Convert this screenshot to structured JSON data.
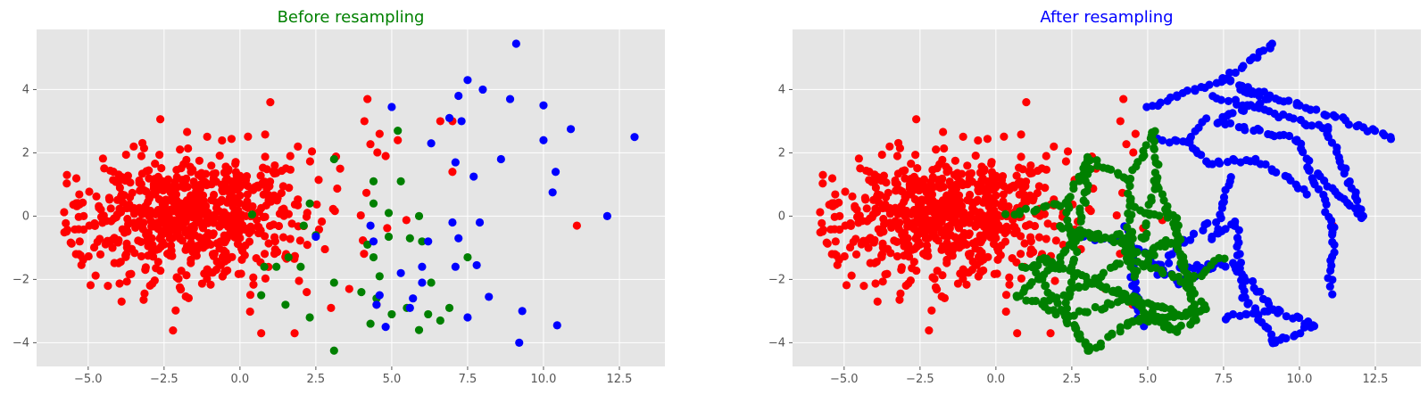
{
  "chart_data": [
    {
      "type": "scatter",
      "title": "Before resampling",
      "title_color": "#008000",
      "xlim": [
        -6.7,
        14.0
      ],
      "ylim": [
        -4.75,
        5.9
      ],
      "xticks": [
        -5.0,
        -2.5,
        0.0,
        2.5,
        5.0,
        7.5,
        10.0,
        12.5
      ],
      "xtick_labels": [
        "−5.0",
        "−2.5",
        "0.0",
        "2.5",
        "5.0",
        "7.5",
        "10.0",
        "12.5"
      ],
      "yticks": [
        -4,
        -2,
        0,
        2,
        4
      ],
      "ytick_labels": [
        "−4",
        "−2",
        "0",
        "2",
        "4"
      ],
      "grid": true,
      "background": "#e5e5e5",
      "series": [
        {
          "color": "#ff0000",
          "cloud": {
            "cx": -1.5,
            "cy": 0.0,
            "sx": 2.0,
            "sy": 1.05,
            "n": 700,
            "xmin": -5.8,
            "xmax": 5.5
          },
          "points": [
            [
              -5.7,
              1.3
            ],
            [
              -3.9,
              -2.7
            ],
            [
              -3.5,
              2.2
            ],
            [
              1.0,
              3.6
            ],
            [
              3.3,
              1.5
            ],
            [
              3.6,
              -2.3
            ],
            [
              4.1,
              3.0
            ],
            [
              4.2,
              3.7
            ],
            [
              4.6,
              2.6
            ],
            [
              4.5,
              -2.8
            ],
            [
              4.8,
              1.9
            ],
            [
              5.2,
              2.4
            ],
            [
              6.6,
              3.0
            ],
            [
              7.0,
              3.0
            ],
            [
              7.0,
              1.4
            ],
            [
              11.1,
              -0.3
            ],
            [
              0.7,
              -3.7
            ],
            [
              1.8,
              -3.7
            ],
            [
              3.0,
              -2.9
            ],
            [
              2.2,
              -2.4
            ]
          ]
        },
        {
          "color": "#008000",
          "points": [
            [
              3.1,
              -4.25
            ],
            [
              5.2,
              2.7
            ],
            [
              5.3,
              1.1
            ],
            [
              5.9,
              0.0
            ],
            [
              6.0,
              -0.8
            ],
            [
              6.3,
              -2.1
            ],
            [
              7.5,
              -1.3
            ],
            [
              6.9,
              -2.9
            ],
            [
              6.6,
              -3.3
            ],
            [
              6.2,
              -3.1
            ],
            [
              5.9,
              -3.6
            ],
            [
              5.5,
              -2.9
            ],
            [
              5.0,
              -3.1
            ],
            [
              4.3,
              -3.4
            ],
            [
              4.5,
              -2.6
            ],
            [
              4.0,
              -2.4
            ],
            [
              4.4,
              -1.3
            ],
            [
              4.2,
              -0.9
            ],
            [
              4.4,
              0.4
            ],
            [
              4.4,
              1.1
            ],
            [
              4.9,
              0.1
            ],
            [
              4.9,
              -0.65
            ],
            [
              3.1,
              1.8
            ],
            [
              2.3,
              0.4
            ],
            [
              2.5,
              -0.6
            ],
            [
              2.0,
              -1.6
            ],
            [
              1.6,
              -1.3
            ],
            [
              1.2,
              -1.6
            ],
            [
              0.8,
              -1.6
            ],
            [
              0.7,
              -2.5
            ],
            [
              1.5,
              -2.8
            ],
            [
              2.3,
              -3.2
            ],
            [
              3.1,
              -2.1
            ],
            [
              0.4,
              0.05
            ],
            [
              5.6,
              -0.7
            ],
            [
              4.6,
              -1.9
            ],
            [
              2.1,
              -0.3
            ]
          ]
        },
        {
          "color": "#0000ff",
          "points": [
            [
              9.1,
              5.45
            ],
            [
              7.5,
              4.3
            ],
            [
              8.0,
              4.0
            ],
            [
              8.9,
              3.7
            ],
            [
              7.2,
              3.8
            ],
            [
              7.3,
              3.0
            ],
            [
              10.0,
              3.5
            ],
            [
              10.9,
              2.75
            ],
            [
              13.0,
              2.5
            ],
            [
              10.0,
              2.4
            ],
            [
              6.9,
              3.1
            ],
            [
              6.3,
              2.3
            ],
            [
              7.1,
              1.7
            ],
            [
              7.7,
              1.25
            ],
            [
              8.6,
              1.8
            ],
            [
              10.4,
              1.4
            ],
            [
              10.3,
              0.75
            ],
            [
              12.1,
              0.0
            ],
            [
              6.0,
              -1.6
            ],
            [
              6.2,
              -0.8
            ],
            [
              7.0,
              -0.2
            ],
            [
              7.2,
              -0.7
            ],
            [
              7.9,
              -0.2
            ],
            [
              7.1,
              -1.6
            ],
            [
              7.8,
              -1.55
            ],
            [
              8.2,
              -2.55
            ],
            [
              9.3,
              -3.0
            ],
            [
              10.45,
              -3.45
            ],
            [
              9.2,
              -4.0
            ],
            [
              7.5,
              -3.2
            ],
            [
              6.0,
              -2.1
            ],
            [
              5.7,
              -2.6
            ],
            [
              5.6,
              -2.9
            ],
            [
              4.3,
              -0.3
            ],
            [
              4.4,
              -0.8
            ],
            [
              4.6,
              -2.5
            ],
            [
              4.5,
              -2.8
            ],
            [
              4.8,
              -3.5
            ],
            [
              5.0,
              3.45
            ],
            [
              2.5,
              -0.65
            ],
            [
              5.3,
              -1.8
            ]
          ]
        }
      ]
    },
    {
      "type": "scatter",
      "title": "After resampling",
      "title_color": "#0000ff",
      "xlim": [
        -6.7,
        14.0
      ],
      "ylim": [
        -4.75,
        5.9
      ],
      "xticks": [
        -5.0,
        -2.5,
        0.0,
        2.5,
        5.0,
        7.5,
        10.0,
        12.5
      ],
      "xtick_labels": [
        "−5.0",
        "−2.5",
        "0.0",
        "2.5",
        "5.0",
        "7.5",
        "10.0",
        "12.5"
      ],
      "yticks": [
        -4,
        -2,
        0,
        2,
        4
      ],
      "ytick_labels": [
        "−4",
        "−2",
        "0",
        "2",
        "4"
      ],
      "grid": true,
      "background": "#e5e5e5",
      "series": [
        {
          "color": "#ff0000",
          "cloud": {
            "cx": -1.5,
            "cy": 0.0,
            "sx": 2.0,
            "sy": 1.05,
            "n": 700,
            "xmin": -5.8,
            "xmax": 5.5
          },
          "points": [
            [
              -5.7,
              1.3
            ],
            [
              -3.9,
              -2.7
            ],
            [
              -3.5,
              2.2
            ],
            [
              1.0,
              3.6
            ],
            [
              3.3,
              1.5
            ],
            [
              3.6,
              -2.3
            ],
            [
              4.1,
              3.0
            ],
            [
              4.2,
              3.7
            ],
            [
              4.6,
              2.6
            ],
            [
              4.5,
              -2.8
            ],
            [
              11.1,
              -0.3
            ],
            [
              0.7,
              -3.7
            ],
            [
              1.8,
              -3.7
            ]
          ]
        },
        {
          "color": "#0000ff",
          "paths": [
            [
              [
                5.0,
                3.45
              ],
              [
                7.5,
                4.3
              ],
              [
                9.1,
                5.45
              ]
            ],
            [
              [
                7.5,
                4.3
              ],
              [
                10.0,
                3.5
              ],
              [
                13.0,
                2.5
              ]
            ],
            [
              [
                7.2,
                3.8
              ],
              [
                10.9,
                2.75
              ],
              [
                12.1,
                0.0
              ]
            ],
            [
              [
                7.3,
                3.0
              ],
              [
                10.0,
                2.4
              ],
              [
                10.4,
                1.4
              ],
              [
                12.1,
                0.0
              ]
            ],
            [
              [
                6.3,
                2.3
              ],
              [
                7.1,
                1.7
              ],
              [
                8.6,
                1.8
              ],
              [
                10.3,
                0.75
              ]
            ],
            [
              [
                7.7,
                1.25
              ],
              [
                7.2,
                -0.7
              ],
              [
                7.9,
                -0.2
              ],
              [
                8.2,
                -2.55
              ]
            ],
            [
              [
                8.2,
                -2.55
              ],
              [
                9.2,
                -4.0
              ],
              [
                10.45,
                -3.45
              ]
            ],
            [
              [
                7.5,
                -3.2
              ],
              [
                9.3,
                -3.0
              ],
              [
                10.45,
                -3.45
              ]
            ],
            [
              [
                6.0,
                -1.6
              ],
              [
                7.8,
                -1.55
              ],
              [
                9.3,
                -3.0
              ]
            ],
            [
              [
                5.3,
                -1.8
              ],
              [
                6.2,
                -0.8
              ],
              [
                7.0,
                -0.2
              ]
            ],
            [
              [
                4.3,
                -0.3
              ],
              [
                4.6,
                -2.5
              ],
              [
                4.8,
                -3.5
              ]
            ],
            [
              [
                6.9,
                3.1
              ],
              [
                6.3,
                2.3
              ],
              [
                5.2,
                2.4
              ]
            ],
            [
              [
                10.4,
                1.4
              ],
              [
                11.1,
                -0.3
              ],
              [
                11.0,
                -2.4
              ]
            ],
            [
              [
                8.0,
                4.0
              ],
              [
                8.9,
                3.7
              ],
              [
                7.3,
                3.0
              ]
            ],
            [
              [
                2.5,
                -0.65
              ],
              [
                4.4,
                -0.8
              ],
              [
                6.0,
                -2.1
              ],
              [
                7.1,
                -1.6
              ]
            ]
          ],
          "points": [
            [
              9.1,
              5.45
            ],
            [
              13.0,
              2.5
            ],
            [
              12.1,
              0.0
            ],
            [
              9.2,
              -4.0
            ],
            [
              10.45,
              -3.45
            ],
            [
              7.5,
              4.3
            ],
            [
              10.0,
              3.5
            ],
            [
              10.9,
              2.75
            ]
          ]
        },
        {
          "color": "#008000",
          "paths": [
            [
              [
                3.1,
                -4.25
              ],
              [
                2.3,
                -3.2
              ],
              [
                1.5,
                -2.8
              ],
              [
                0.7,
                -2.5
              ]
            ],
            [
              [
                0.8,
                -1.6
              ],
              [
                1.2,
                -1.6
              ],
              [
                1.6,
                -1.3
              ],
              [
                2.0,
                -1.6
              ],
              [
                2.5,
                -0.6
              ],
              [
                2.3,
                0.4
              ]
            ],
            [
              [
                0.4,
                0.05
              ],
              [
                2.3,
                0.4
              ],
              [
                3.1,
                1.8
              ],
              [
                4.4,
                1.1
              ],
              [
                5.2,
                2.7
              ]
            ],
            [
              [
                4.4,
                0.4
              ],
              [
                4.9,
                0.1
              ],
              [
                5.9,
                0.0
              ],
              [
                6.0,
                -0.8
              ],
              [
                6.3,
                -2.1
              ],
              [
                7.5,
                -1.3
              ]
            ],
            [
              [
                3.1,
                -2.1
              ],
              [
                4.0,
                -2.4
              ],
              [
                4.5,
                -2.6
              ],
              [
                5.5,
                -2.9
              ],
              [
                6.2,
                -3.1
              ],
              [
                6.9,
                -2.9
              ]
            ],
            [
              [
                4.3,
                -3.4
              ],
              [
                5.0,
                -3.1
              ],
              [
                5.9,
                -3.6
              ],
              [
                6.6,
                -3.3
              ]
            ],
            [
              [
                2.1,
                -0.3
              ],
              [
                4.2,
                -0.9
              ],
              [
                4.4,
                -1.3
              ],
              [
                4.6,
                -1.9
              ],
              [
                5.6,
                -0.7
              ]
            ],
            [
              [
                1.5,
                -2.8
              ],
              [
                3.1,
                -2.1
              ],
              [
                4.4,
                -1.3
              ],
              [
                6.0,
                -0.8
              ]
            ],
            [
              [
                2.5,
                -0.6
              ],
              [
                4.9,
                -0.65
              ],
              [
                5.3,
                1.1
              ],
              [
                5.2,
                2.7
              ]
            ],
            [
              [
                1.2,
                -1.6
              ],
              [
                3.1,
                -4.25
              ],
              [
                4.3,
                -3.4
              ],
              [
                6.2,
                -3.1
              ]
            ],
            [
              [
                0.7,
                -2.5
              ],
              [
                2.0,
                -1.6
              ],
              [
                4.0,
                -2.4
              ],
              [
                5.9,
                -3.6
              ]
            ],
            [
              [
                3.1,
                1.8
              ],
              [
                2.3,
                -3.2
              ],
              [
                4.5,
                -2.6
              ]
            ],
            [
              [
                4.4,
                1.1
              ],
              [
                4.4,
                -1.3
              ],
              [
                6.3,
                -2.1
              ],
              [
                6.9,
                -2.9
              ]
            ],
            [
              [
                5.3,
                1.1
              ],
              [
                6.0,
                -0.8
              ],
              [
                6.6,
                -3.3
              ]
            ]
          ],
          "points": []
        }
      ]
    }
  ]
}
